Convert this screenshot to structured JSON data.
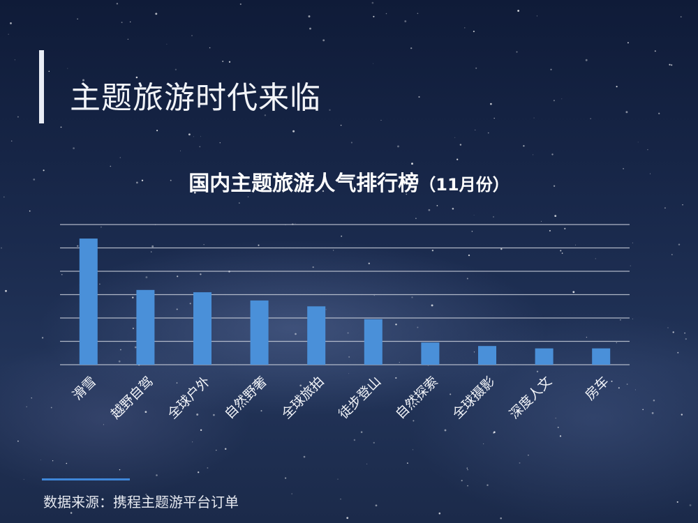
{
  "page": {
    "title": "主题旅游时代来临",
    "source": "数据来源：携程主题游平台订单"
  },
  "chart_data": {
    "type": "bar",
    "title": "国内主题旅游人气排行榜",
    "subtitle": "（11月份）",
    "categories": [
      "滑雪",
      "越野自驾",
      "全球户外",
      "自然野奢",
      "全球旅拍",
      "徒步登山",
      "自然探索",
      "全球摄影",
      "深度人文",
      "房车"
    ],
    "values": [
      5.4,
      3.2,
      3.1,
      2.75,
      2.5,
      1.95,
      0.95,
      0.8,
      0.7,
      0.7
    ],
    "ylim": [
      0,
      6
    ],
    "grid": true,
    "bar_color": "#4a90d9",
    "grid_color": "#c9cfdb"
  }
}
